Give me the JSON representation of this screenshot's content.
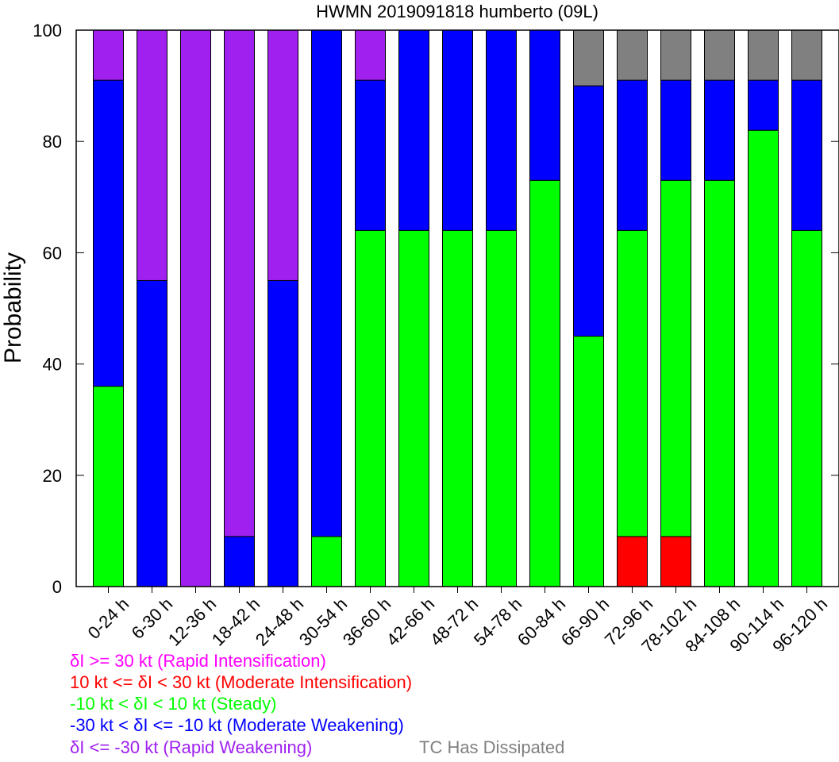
{
  "chart_data": {
    "type": "bar",
    "stacked": true,
    "title": "HWMN 2019091818 humberto (09L)",
    "ylabel": "Probability",
    "xlabel": "",
    "ylim": [
      0,
      100
    ],
    "yticks": [
      0,
      20,
      40,
      60,
      80,
      100
    ],
    "grid": false,
    "legend_position": "bottom",
    "categories": [
      "0-24 h",
      "6-30 h",
      "12-36 h",
      "18-42 h",
      "24-48 h",
      "30-54 h",
      "36-60 h",
      "42-66 h",
      "48-72 h",
      "54-78 h",
      "60-84 h",
      "66-90 h",
      "72-96 h",
      "78-102 h",
      "84-108 h",
      "90-114 h",
      "96-120 h"
    ],
    "series": [
      {
        "name": "δI >= 30 kt (Rapid Intensification)",
        "color": "#ff00ff",
        "values": [
          0,
          0,
          0,
          0,
          0,
          0,
          0,
          0,
          0,
          0,
          0,
          0,
          0,
          0,
          0,
          0,
          0
        ]
      },
      {
        "name": "10 kt <= δI < 30 kt (Moderate Intensification)",
        "color": "#ff0000",
        "values": [
          0,
          0,
          0,
          0,
          0,
          0,
          0,
          0,
          0,
          0,
          0,
          0,
          9,
          9,
          0,
          0,
          0
        ]
      },
      {
        "name": "-10 kt < δI < 10 kt (Steady)",
        "color": "#00ff00",
        "values": [
          36,
          0,
          0,
          0,
          0,
          9,
          64,
          64,
          64,
          64,
          73,
          45,
          55,
          64,
          73,
          82,
          64
        ]
      },
      {
        "name": "-30 kt < δI <= -10 kt (Moderate Weakening)",
        "color": "#0000ff",
        "values": [
          55,
          55,
          0,
          9,
          55,
          91,
          27,
          36,
          36,
          36,
          27,
          45,
          27,
          18,
          18,
          9,
          27
        ]
      },
      {
        "name": "δI <= -30 kt (Rapid Weakening)",
        "color": "#a020f0",
        "values": [
          9,
          45,
          100,
          91,
          45,
          0,
          9,
          0,
          0,
          0,
          0,
          0,
          0,
          0,
          0,
          0,
          0
        ]
      },
      {
        "name": "TC Has Dissipated",
        "color": "#808080",
        "values": [
          0,
          0,
          0,
          0,
          0,
          0,
          0,
          0,
          0,
          0,
          0,
          10,
          9,
          9,
          9,
          9,
          9
        ]
      }
    ]
  },
  "legend": {
    "rapid_intensification": "δI >= 30 kt (Rapid Intensification)",
    "moderate_intensification": "10 kt <= δI < 30 kt (Moderate Intensification)",
    "steady": "-10 kt < δI < 10 kt (Steady)",
    "moderate_weakening": "-30 kt < δI <= -10 kt (Moderate Weakening)",
    "rapid_weakening": "δI <= -30 kt (Rapid Weakening)",
    "dissipated": "TC Has Dissipated"
  },
  "colors": {
    "rapid_intensification": "#ff00ff",
    "moderate_intensification": "#ff0000",
    "steady": "#00ff00",
    "moderate_weakening": "#0000ff",
    "rapid_weakening": "#a020f0",
    "dissipated": "#808080"
  }
}
